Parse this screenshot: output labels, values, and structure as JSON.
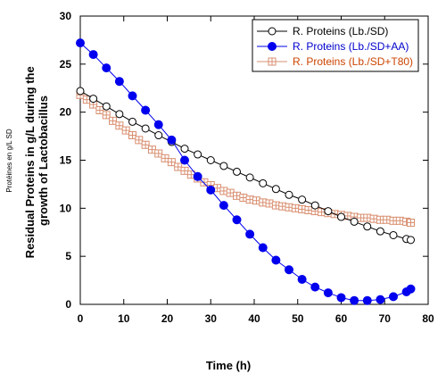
{
  "chart_data": {
    "type": "line",
    "title": "",
    "xlabel": "Time (h)",
    "ylabel": "Residual Proteins in g/L during the growth of Lactobacillus",
    "side_note": "Protéines en g/L SD",
    "xlim": [
      0,
      80
    ],
    "ylim": [
      0,
      30
    ],
    "xticks": [
      0,
      10,
      20,
      30,
      40,
      50,
      60,
      70,
      80
    ],
    "yticks": [
      0,
      5,
      10,
      15,
      20,
      25,
      30
    ],
    "grid": false,
    "legend_position": "top-right",
    "series": [
      {
        "name": "R. Proteins (Lb./SD)",
        "marker": "open-circle",
        "color": "#000000",
        "text_color": "#000000",
        "x": [
          0,
          3,
          6,
          9,
          12,
          15,
          18,
          21,
          24,
          27,
          30,
          33,
          36,
          39,
          42,
          45,
          48,
          51,
          54,
          57,
          60,
          63,
          66,
          69,
          72,
          75,
          76
        ],
        "y": [
          22.2,
          21.4,
          20.6,
          19.8,
          19.0,
          18.3,
          17.6,
          16.9,
          16.2,
          15.6,
          15.0,
          14.4,
          13.8,
          13.2,
          12.6,
          12.0,
          11.4,
          10.9,
          10.3,
          9.7,
          9.1,
          8.6,
          8.1,
          7.6,
          7.2,
          6.8,
          6.7
        ]
      },
      {
        "name": "R. Proteins (Lb./SD+AA)",
        "marker": "filled-circle",
        "color": "#0000ee",
        "text_color": "#0000cc",
        "x": [
          0,
          3,
          6,
          9,
          12,
          15,
          18,
          21,
          24,
          27,
          30,
          33,
          36,
          39,
          42,
          45,
          48,
          51,
          54,
          57,
          60,
          63,
          66,
          69,
          72,
          75,
          76
        ],
        "y": [
          27.2,
          26.0,
          24.6,
          23.2,
          21.7,
          20.2,
          18.7,
          17.1,
          15.0,
          13.3,
          11.9,
          10.3,
          8.8,
          7.3,
          5.9,
          4.6,
          3.6,
          2.6,
          1.8,
          1.2,
          0.7,
          0.4,
          0.4,
          0.5,
          0.8,
          1.3,
          1.6
        ]
      },
      {
        "name": "R. Proteins (Lb./SD+T80)",
        "marker": "open-square-cross",
        "color": "#d98f70",
        "text_color": "#cc4400",
        "x": [
          0,
          1.5,
          3,
          4.5,
          6,
          7.5,
          9,
          10.5,
          12,
          13.5,
          15,
          16.5,
          18,
          19.5,
          21,
          22.5,
          24,
          25.5,
          27,
          28.5,
          30,
          31.5,
          33,
          34.5,
          36,
          37.5,
          39,
          40.5,
          42,
          43.5,
          45,
          46.5,
          48,
          49.5,
          51,
          52.5,
          54,
          55.5,
          57,
          58.5,
          60,
          61.5,
          63,
          64.5,
          66,
          67.5,
          69,
          70.5,
          72,
          73.5,
          75,
          76
        ],
        "y": [
          21.8,
          21.3,
          20.8,
          20.2,
          19.7,
          19.1,
          18.6,
          18.1,
          17.6,
          17.1,
          16.6,
          16.1,
          15.7,
          15.2,
          14.8,
          14.3,
          13.9,
          13.5,
          13.1,
          12.7,
          12.4,
          12.1,
          11.8,
          11.6,
          11.3,
          11.1,
          10.9,
          10.8,
          10.6,
          10.5,
          10.3,
          10.2,
          10.1,
          10.0,
          9.9,
          9.8,
          9.7,
          9.6,
          9.5,
          9.4,
          9.3,
          9.2,
          9.1,
          9.0,
          9.0,
          8.9,
          8.8,
          8.8,
          8.7,
          8.7,
          8.6,
          8.5
        ]
      }
    ]
  }
}
